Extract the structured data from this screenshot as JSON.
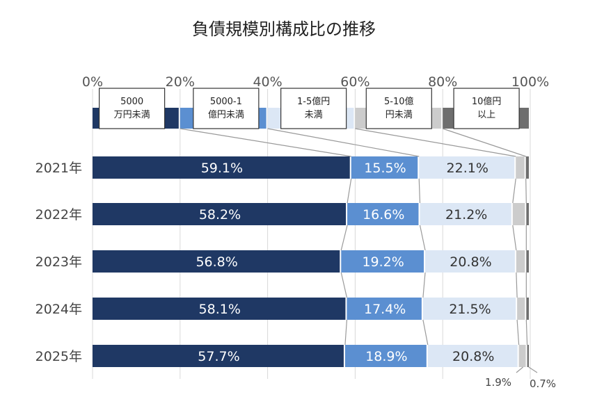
{
  "chart_data": {
    "type": "bar",
    "orientation": "horizontal",
    "stacked": "percent",
    "title": "負債規模別構成比の推移",
    "xlim": [
      0,
      100
    ],
    "x_ticks": [
      "0%",
      "20%",
      "40%",
      "60%",
      "80%",
      "100%"
    ],
    "categories": [
      "2021年",
      "2022年",
      "2023年",
      "2024年",
      "2025年"
    ],
    "series": [
      {
        "name": "5000\n万円未満",
        "color": "#1f3864",
        "label_color": "#ffffff",
        "values": [
          59.1,
          58.2,
          56.8,
          58.1,
          57.7
        ],
        "labels": [
          "59.1%",
          "58.2%",
          "56.8%",
          "58.1%",
          "57.7%"
        ]
      },
      {
        "name": "5000-1\n億円未満",
        "color": "#5b8fd1",
        "label_color": "#ffffff",
        "values": [
          15.5,
          16.6,
          19.2,
          17.4,
          18.9
        ],
        "labels": [
          "15.5%",
          "16.6%",
          "19.2%",
          "17.4%",
          "18.9%"
        ]
      },
      {
        "name": "1-5億円\n未満",
        "color": "#dce7f5",
        "label_color": "#333333",
        "values": [
          22.1,
          21.2,
          20.8,
          21.5,
          20.8
        ],
        "labels": [
          "22.1%",
          "21.2%",
          "20.8%",
          "21.5%",
          "20.8%"
        ]
      },
      {
        "name": "5-10億\n円未満",
        "color": "#cccccc",
        "label_color": "#333333",
        "values": [
          2.3,
          3.1,
          2.3,
          2.1,
          1.9
        ],
        "labels": [
          "",
          "",
          "",
          "",
          ""
        ]
      },
      {
        "name": "10億円\n以上",
        "color": "#6e6e6e",
        "label_color": "#333333",
        "values": [
          1.0,
          0.9,
          0.9,
          0.9,
          0.7
        ],
        "labels": [
          "",
          "",
          "",
          "",
          ""
        ]
      }
    ],
    "callouts": [
      "1.9%",
      "0.7%"
    ],
    "legend": "top",
    "grid": true
  }
}
